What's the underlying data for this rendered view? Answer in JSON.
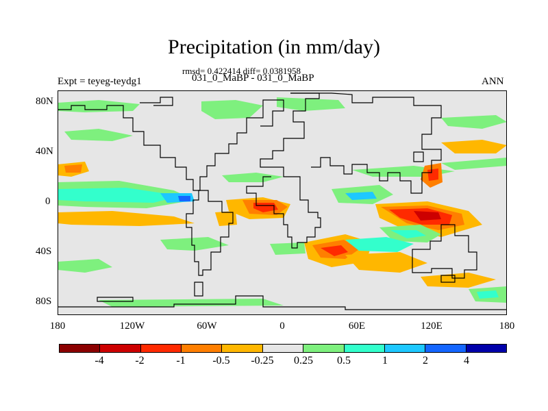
{
  "title": "Precipitation (in mm/day)",
  "stats_line": "rmsd= 0.422414 diff= 0.0381958",
  "periods_line": "031_0_MaBP - 031_0_MaBP",
  "experiment_label": "Expt = teyeg-teydg1",
  "season": "ANN",
  "y_ticks": [
    "80N",
    "40N",
    "0",
    "40S",
    "80S"
  ],
  "x_ticks": [
    "180",
    "120W",
    "60W",
    "0",
    "60E",
    "120E",
    "180"
  ],
  "colorbar": {
    "colors": [
      "#8b0000",
      "#cd0000",
      "#ff2a00",
      "#ff7f00",
      "#ffb700",
      "#e6e6e6",
      "#7ef07e",
      "#33ffcc",
      "#1ec8ff",
      "#1466ff",
      "#0000aa"
    ],
    "labels": [
      "-4",
      "-2",
      "-1",
      "-0.5",
      "-0.25",
      "0.25",
      "0.5",
      "1",
      "2",
      "4"
    ]
  },
  "map": {
    "background": "#e6e6e6",
    "colors": {
      "pos1": "#7ef07e",
      "pos2": "#33ffcc",
      "pos3": "#1ec8ff",
      "pos4": "#1466ff",
      "neg1": "#ffb700",
      "neg2": "#ff7f00",
      "neg3": "#ff2a00",
      "neg4": "#cd0000"
    }
  }
}
